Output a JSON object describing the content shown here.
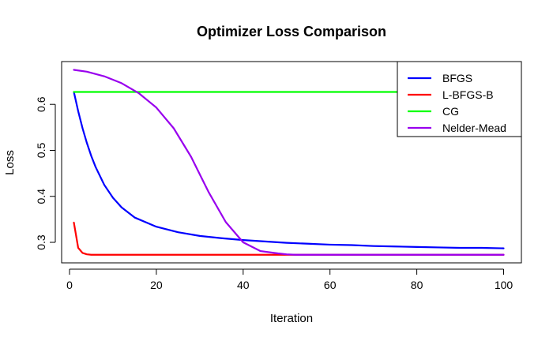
{
  "chart_data": {
    "type": "line",
    "title": "Optimizer Loss Comparison",
    "xlabel": "Iteration",
    "ylabel": "Loss",
    "xlim": [
      1,
      100
    ],
    "ylim": [
      0.27,
      0.675
    ],
    "xticks": [
      0,
      20,
      40,
      60,
      80,
      100
    ],
    "yticks": [
      0.3,
      0.4,
      0.5,
      0.6
    ],
    "ytick_labels": [
      "0.3",
      "0.4",
      "0.5",
      "0.6"
    ],
    "grid": false,
    "legend_position": "top-right",
    "series": [
      {
        "name": "BFGS",
        "color": "#0000FF",
        "x": [
          1,
          2,
          3,
          4,
          5,
          6,
          8,
          10,
          12,
          15,
          20,
          25,
          30,
          35,
          40,
          45,
          50,
          55,
          60,
          65,
          70,
          75,
          80,
          85,
          90,
          95,
          100
        ],
        "y": [
          0.627,
          0.585,
          0.548,
          0.516,
          0.488,
          0.464,
          0.425,
          0.397,
          0.376,
          0.354,
          0.334,
          0.322,
          0.314,
          0.309,
          0.305,
          0.302,
          0.299,
          0.297,
          0.295,
          0.294,
          0.292,
          0.291,
          0.29,
          0.289,
          0.288,
          0.288,
          0.287
        ]
      },
      {
        "name": "L-BFGS-B",
        "color": "#FF0000",
        "x": [
          1,
          2,
          3,
          4,
          5,
          6,
          8,
          10,
          20,
          40,
          60,
          80,
          100
        ],
        "y": [
          0.343,
          0.288,
          0.277,
          0.274,
          0.273,
          0.273,
          0.273,
          0.273,
          0.273,
          0.273,
          0.273,
          0.273,
          0.273
        ]
      },
      {
        "name": "CG",
        "color": "#00FF00",
        "x": [
          1,
          20,
          40,
          60,
          80,
          100
        ],
        "y": [
          0.627,
          0.627,
          0.627,
          0.627,
          0.627,
          0.627
        ]
      },
      {
        "name": "Nelder-Mead",
        "color": "#9900EE",
        "x": [
          1,
          4,
          8,
          12,
          16,
          20,
          24,
          28,
          32,
          36,
          40,
          44,
          48,
          50,
          52,
          55,
          60,
          70,
          80,
          90,
          100
        ],
        "y": [
          0.675,
          0.671,
          0.661,
          0.646,
          0.624,
          0.593,
          0.548,
          0.486,
          0.41,
          0.344,
          0.3,
          0.281,
          0.276,
          0.274,
          0.273,
          0.273,
          0.273,
          0.273,
          0.273,
          0.273,
          0.273
        ]
      }
    ]
  }
}
